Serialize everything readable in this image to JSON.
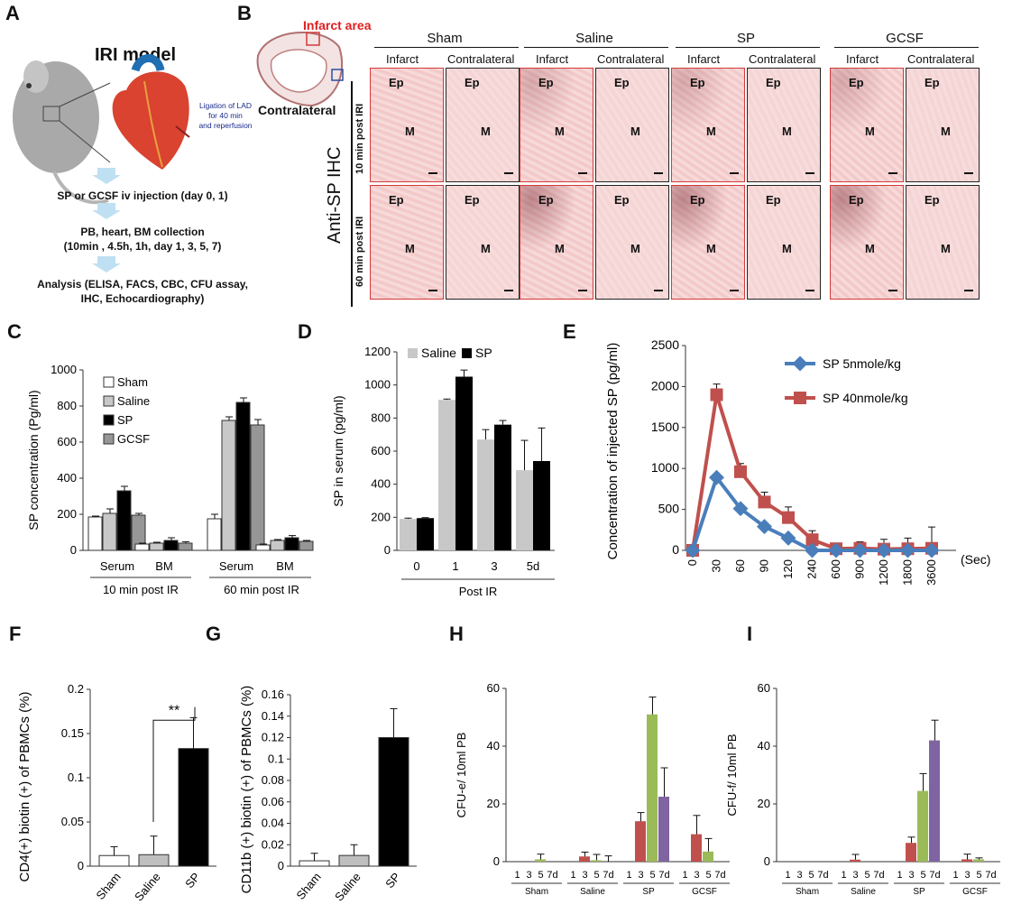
{
  "panels": {
    "A": "A",
    "B": "B",
    "C": "C",
    "D": "D",
    "E": "E",
    "F": "F",
    "G": "G",
    "H": "H",
    "I": "I"
  },
  "panelA": {
    "title": "IRI model",
    "ligation": [
      "Ligation of LAD",
      "for 40 min",
      "and reperfusion"
    ],
    "step1": "SP or GCSF iv injection (day 0, 1)",
    "step2a": "PB, heart, BM collection",
    "step2b": "(10min , 4.5h, 1h, day  1, 3, 5, 7)",
    "step3a": "Analysis (ELISA, FACS, CBC, CFU assay,",
    "step3b": "IHC, Echocardiography)"
  },
  "panelB": {
    "infarct_area": "Infarct area",
    "contralateral": "Contralateral",
    "ihc_label": "Anti-SP IHC",
    "row_labels": [
      "10 min post IRI",
      "60 min post IRI"
    ],
    "groups": [
      "Sham",
      "Saline",
      "SP",
      "GCSF"
    ],
    "sublabels": [
      "Infarct",
      "Contralateral"
    ],
    "ep": "Ep",
    "m": "M"
  },
  "chart_data": [
    {
      "id": "C",
      "type": "bar",
      "ylabel": "SP concentration (Pg/ml)",
      "ylim": [
        0,
        1000
      ],
      "yticks": [
        0,
        200,
        400,
        600,
        800,
        1000
      ],
      "legend": [
        "Sham",
        "Saline",
        "SP",
        "GCSF"
      ],
      "categories": [
        "Serum",
        "BM",
        "Serum",
        "BM"
      ],
      "groups": [
        "10 min post IR",
        "60 min post IR"
      ],
      "series": [
        {
          "name": "Sham",
          "values": [
            185,
            35,
            175,
            30
          ],
          "err": [
            5,
            5,
            25,
            5
          ]
        },
        {
          "name": "Saline",
          "values": [
            205,
            40,
            720,
            55
          ],
          "err": [
            25,
            5,
            20,
            5
          ]
        },
        {
          "name": "SP",
          "values": [
            330,
            55,
            820,
            70
          ],
          "err": [
            25,
            15,
            25,
            12
          ]
        },
        {
          "name": "GCSF",
          "values": [
            195,
            40,
            695,
            50
          ],
          "err": [
            10,
            8,
            30,
            5
          ]
        }
      ]
    },
    {
      "id": "D",
      "type": "bar",
      "ylabel": "SP in serum (pg/ml)",
      "xlabel": "Post IR",
      "ylim": [
        0,
        1200
      ],
      "yticks": [
        0,
        200,
        400,
        600,
        800,
        1000,
        1200
      ],
      "legend": [
        "Saline",
        "SP"
      ],
      "categories": [
        "0",
        "1",
        "3",
        "5d"
      ],
      "series": [
        {
          "name": "Saline",
          "values": [
            190,
            910,
            670,
            485
          ],
          "err": [
            5,
            5,
            60,
            180
          ]
        },
        {
          "name": "SP",
          "values": [
            195,
            1050,
            760,
            540
          ],
          "err": [
            3,
            40,
            25,
            200
          ]
        }
      ]
    },
    {
      "id": "E",
      "type": "line",
      "ylabel": "Concentration of injected SP (pg/ml)",
      "xunit": "(Sec)",
      "ylim": [
        0,
        2500
      ],
      "yticks": [
        0,
        500,
        1000,
        1500,
        2000,
        2500
      ],
      "categories": [
        "0",
        "30",
        "60",
        "90",
        "120",
        "240",
        "600",
        "900",
        "1200",
        "1800",
        "3600"
      ],
      "series": [
        {
          "name": "SP  5nmole/kg",
          "color": "#4a7ebb",
          "values": [
            0,
            890,
            510,
            290,
            150,
            0,
            0,
            0,
            0,
            0,
            0
          ],
          "err": [
            0,
            30,
            30,
            40,
            40,
            0,
            0,
            0,
            0,
            0,
            0
          ]
        },
        {
          "name": "SP  40nmole/kg",
          "color": "#c0504d",
          "values": [
            0,
            1900,
            960,
            590,
            400,
            130,
            20,
            25,
            15,
            20,
            25
          ],
          "err": [
            0,
            130,
            100,
            120,
            130,
            110,
            40,
            80,
            120,
            130,
            260
          ]
        }
      ]
    },
    {
      "id": "F",
      "type": "bar",
      "ylabel": "CD4(+) biotin (+) of PBMCs (%)",
      "ylim": [
        0,
        0.2
      ],
      "yticks": [
        "0",
        "0.05",
        "0.1",
        "0.15",
        "0.2"
      ],
      "categories": [
        "Sham",
        "Saline",
        "SP"
      ],
      "values": [
        0.012,
        0.013,
        0.133
      ],
      "err": [
        0.01,
        0.021,
        0.035
      ],
      "colors": [
        "#ffffff",
        "#bfbfbf",
        "#000000"
      ],
      "annotation": "**"
    },
    {
      "id": "G",
      "type": "bar",
      "ylabel": "CD11b (+) biotin (+) of PBMCs (%)",
      "ylim": [
        0,
        0.16
      ],
      "yticks": [
        "0",
        "0.02",
        "0.04",
        "0.06",
        "0.08",
        "0.1",
        "0.12",
        "0.14",
        "0.16"
      ],
      "categories": [
        "Sham",
        "Saline",
        "SP"
      ],
      "values": [
        0.005,
        0.01,
        0.12
      ],
      "err": [
        0.007,
        0.01,
        0.027
      ],
      "colors": [
        "#ffffff",
        "#bfbfbf",
        "#000000"
      ]
    },
    {
      "id": "H",
      "type": "bar",
      "ylabel": "CFU-e/ 10ml PB",
      "ylim": [
        0,
        60
      ],
      "yticks": [
        0,
        20,
        40,
        60
      ],
      "days": [
        "1",
        "3",
        "5",
        "7d"
      ],
      "groups": [
        "Sham",
        "Saline",
        "SP",
        "GCSF"
      ],
      "colors": [
        "#c0504d",
        "#c0504d",
        "#9bbb59",
        "#8064a2"
      ],
      "values": [
        [
          0,
          0,
          0.8,
          0
        ],
        [
          0,
          1.8,
          0.5,
          0
        ],
        [
          0,
          14,
          51,
          22.5
        ],
        [
          0,
          9.5,
          3.5,
          0
        ]
      ],
      "err": [
        [
          0,
          0,
          1.8,
          0
        ],
        [
          0,
          1.5,
          2,
          2
        ],
        [
          0,
          3,
          6,
          10
        ],
        [
          0,
          6.5,
          4.5,
          0
        ]
      ]
    },
    {
      "id": "I",
      "type": "bar",
      "ylabel": "CFU-f/ 10ml PB",
      "ylim": [
        0,
        60
      ],
      "yticks": [
        0,
        20,
        40,
        60
      ],
      "days": [
        "1",
        "3",
        "5",
        "7d"
      ],
      "groups": [
        "Sham",
        "Saline",
        "SP",
        "GCSF"
      ],
      "colors": [
        "#c0504d",
        "#c0504d",
        "#9bbb59",
        "#8064a2"
      ],
      "values": [
        [
          0,
          0,
          0,
          0
        ],
        [
          0,
          0.7,
          0,
          0
        ],
        [
          0,
          6.5,
          24.5,
          42
        ],
        [
          0,
          0.8,
          0.8,
          0
        ]
      ],
      "err": [
        [
          0,
          0,
          0,
          0
        ],
        [
          0,
          1.8,
          0,
          0
        ],
        [
          0,
          2,
          6,
          7
        ],
        [
          0,
          1.8,
          0.5,
          0
        ]
      ]
    }
  ]
}
